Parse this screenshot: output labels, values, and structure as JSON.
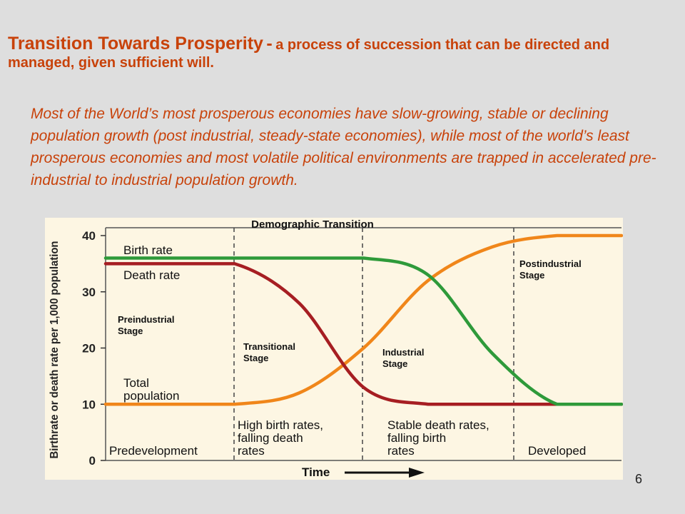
{
  "slide": {
    "title_main": "Transition Towards Prosperity",
    "title_separator": "-",
    "title_rest": "a process of succession that can be directed and managed, given sufficient will.",
    "body": "Most of the World’s most prosperous economies have slow-growing, stable or declining population growth (post industrial, steady-state economies), while most of the world’s least  prosperous economies and most volatile political environments are trapped in accelerated pre-industrial to industrial population growth.",
    "page_number": "6"
  },
  "chart_data": {
    "type": "line",
    "title": "Demographic Transition",
    "ylabel": "Birthrate or death rate per 1,000 population",
    "xlabel": "Time",
    "ylim": [
      0,
      40
    ],
    "yticks": [
      "0",
      "10",
      "20",
      "30",
      "40"
    ],
    "x": [
      0,
      1,
      2,
      3,
      4,
      5,
      6,
      7,
      8
    ],
    "series": [
      {
        "name": "Birth rate",
        "color": "#2e9a3a",
        "values": [
          36,
          36,
          36,
          36,
          36,
          33,
          19,
          10,
          10
        ]
      },
      {
        "name": "Death rate",
        "color": "#a61e22",
        "values": [
          35,
          35,
          35,
          28,
          13,
          10,
          10,
          10,
          10
        ]
      },
      {
        "name": "Total population",
        "color": "#f0861a",
        "values": [
          10,
          10,
          10,
          12,
          20,
          32,
          38,
          40,
          40
        ]
      }
    ],
    "series_labels": [
      "Birth rate",
      "Death rate",
      "Total population"
    ],
    "stages": [
      "Preindustrial Stage",
      "Transitional Stage",
      "Industrial Stage",
      "Postindustrial Stage"
    ],
    "bottom_labels": [
      "Predevelopment",
      "High birth rates, falling death rates",
      "Stable death rates, falling birth rates",
      "Developed"
    ],
    "grid": false
  }
}
